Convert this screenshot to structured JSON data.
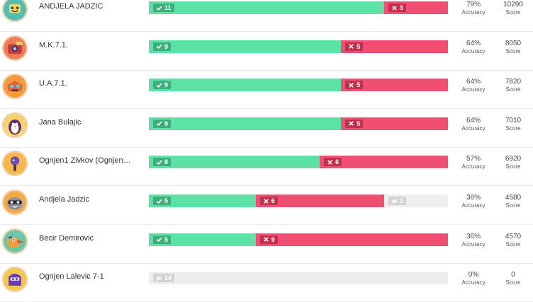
{
  "labels": {
    "accuracy": "Accuracy",
    "score": "Score"
  },
  "colors": {
    "correct": "#5de2a5",
    "wrong": "#f14e73",
    "skip": "#eeeeee"
  },
  "players": [
    {
      "name": "ANDJELA JADZIC",
      "correct": 11,
      "wrong": 3,
      "skipped": 0,
      "accuracy": "79%",
      "score": "10290",
      "avatar": "teal-smile-avatar"
    },
    {
      "name": "M.K.7.1.",
      "correct": 9,
      "wrong": 5,
      "skipped": 0,
      "accuracy": "64%",
      "score": "8050",
      "avatar": "red-camera-avatar"
    },
    {
      "name": "U.A.7.1.",
      "correct": 9,
      "wrong": 5,
      "skipped": 0,
      "accuracy": "64%",
      "score": "7820",
      "avatar": "orange-robot-avatar"
    },
    {
      "name": "Jana Bulajic",
      "correct": 9,
      "wrong": 5,
      "skipped": 0,
      "accuracy": "64%",
      "score": "7010",
      "avatar": "penguin-avatar"
    },
    {
      "name": "Ognjen1 Zivkov (Ognjen…",
      "correct": 8,
      "wrong": 6,
      "skipped": 0,
      "accuracy": "57%",
      "score": "6920",
      "avatar": "purple-microphone-avatar"
    },
    {
      "name": "Andjela Jadzic",
      "correct": 5,
      "wrong": 6,
      "skipped": 3,
      "accuracy": "36%",
      "score": "4580",
      "avatar": "raccoon-avatar"
    },
    {
      "name": "Becir Demirovic",
      "correct": 5,
      "wrong": 9,
      "skipped": 0,
      "accuracy": "36%",
      "score": "4570",
      "avatar": "bird-avatar"
    },
    {
      "name": "Ognjen Lalevic 7-1",
      "correct": 0,
      "wrong": 0,
      "skipped": 14,
      "accuracy": "0%",
      "score": "0",
      "avatar": "purple-monster-avatar"
    }
  ]
}
